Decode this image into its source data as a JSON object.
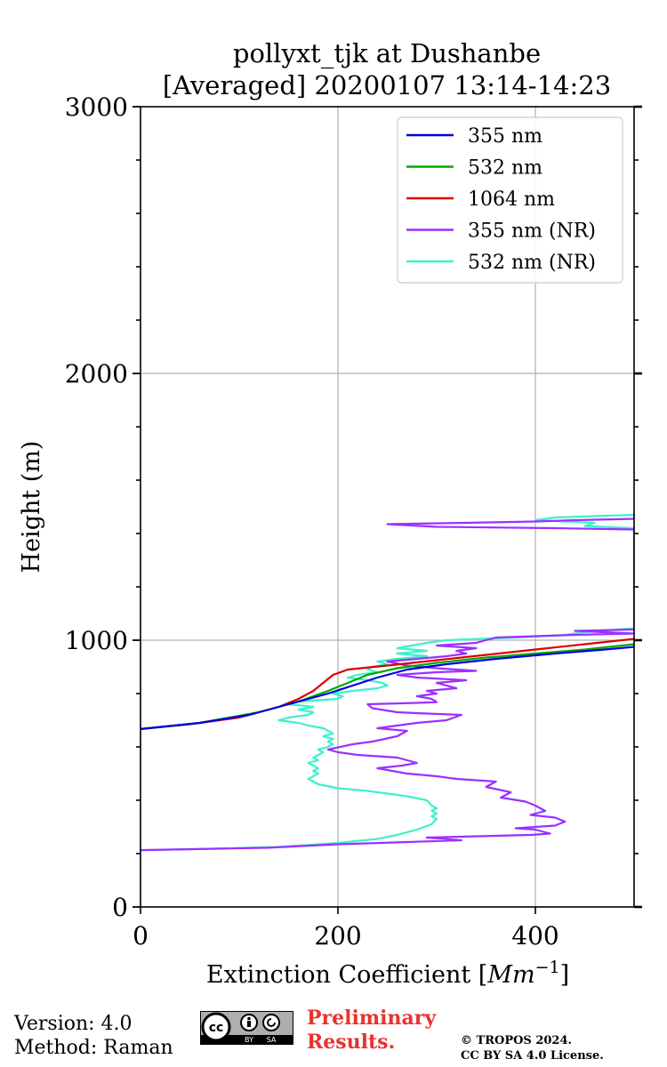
{
  "chart_data": {
    "type": "line",
    "title_line1": "pollyxt_tjk at Dushanbe",
    "title_line2": "[Averaged] 20200107 13:14-14:23",
    "xlabel": "Extinction Coefficient [",
    "xlabel_unit": "Mm",
    "xlabel_exp": "−1",
    "xlabel_end": "]",
    "ylabel": "Height (m)",
    "xlim": [
      0,
      500
    ],
    "ylim": [
      0,
      3000
    ],
    "xticks": [
      0,
      200,
      400
    ],
    "xtick_labels": [
      "0",
      "200",
      "400"
    ],
    "yticks": [
      0,
      1000,
      2000,
      3000
    ],
    "ytick_labels": [
      "0",
      "1000",
      "2000",
      "3000"
    ],
    "yminor_step": 200,
    "grid": true,
    "legend_position": "top-right",
    "series": [
      {
        "name": "355 nm",
        "color": "#0000e0",
        "points": [
          [
            0,
            667
          ],
          [
            60,
            690
          ],
          [
            110,
            720
          ],
          [
            160,
            770
          ],
          [
            190,
            800
          ],
          [
            215,
            830
          ],
          [
            240,
            860
          ],
          [
            270,
            890
          ],
          [
            310,
            910
          ],
          [
            360,
            930
          ],
          [
            420,
            950
          ],
          [
            470,
            965
          ],
          [
            500,
            975
          ]
        ]
      },
      {
        "name": "532 nm",
        "color": "#00aa00",
        "points": [
          [
            0,
            667
          ],
          [
            60,
            690
          ],
          [
            120,
            730
          ],
          [
            160,
            770
          ],
          [
            190,
            810
          ],
          [
            210,
            840
          ],
          [
            230,
            870
          ],
          [
            260,
            895
          ],
          [
            300,
            915
          ],
          [
            350,
            935
          ],
          [
            400,
            950
          ],
          [
            450,
            965
          ],
          [
            500,
            985
          ]
        ]
      },
      {
        "name": "1064 nm",
        "color": "#dd0000",
        "points": [
          [
            0,
            667
          ],
          [
            50,
            685
          ],
          [
            100,
            710
          ],
          [
            140,
            750
          ],
          [
            160,
            780
          ],
          [
            175,
            810
          ],
          [
            185,
            840
          ],
          [
            195,
            870
          ],
          [
            210,
            890
          ],
          [
            250,
            905
          ],
          [
            300,
            925
          ],
          [
            350,
            945
          ],
          [
            400,
            965
          ],
          [
            450,
            985
          ],
          [
            500,
            1005
          ]
        ]
      },
      {
        "name": "355 nm (NR)",
        "color": "#9b30ff",
        "points": [
          [
            0,
            213
          ],
          [
            130,
            222
          ],
          [
            200,
            235
          ],
          [
            260,
            242
          ],
          [
            325,
            250
          ],
          [
            290,
            260
          ],
          [
            395,
            270
          ],
          [
            415,
            275
          ],
          [
            400,
            290
          ],
          [
            380,
            295
          ],
          [
            420,
            305
          ],
          [
            430,
            320
          ],
          [
            420,
            335
          ],
          [
            395,
            345
          ],
          [
            410,
            360
          ],
          [
            400,
            380
          ],
          [
            390,
            395
          ],
          [
            365,
            410
          ],
          [
            375,
            430
          ],
          [
            350,
            450
          ],
          [
            360,
            470
          ],
          [
            320,
            480
          ],
          [
            300,
            490
          ],
          [
            270,
            500
          ],
          [
            255,
            510
          ],
          [
            240,
            520
          ],
          [
            265,
            530
          ],
          [
            280,
            540
          ],
          [
            270,
            550
          ],
          [
            260,
            560
          ],
          [
            220,
            570
          ],
          [
            200,
            580
          ],
          [
            190,
            590
          ],
          [
            215,
            610
          ],
          [
            235,
            620
          ],
          [
            260,
            640
          ],
          [
            270,
            660
          ],
          [
            240,
            670
          ],
          [
            260,
            680
          ],
          [
            280,
            690
          ],
          [
            310,
            700
          ],
          [
            325,
            720
          ],
          [
            290,
            725
          ],
          [
            260,
            730
          ],
          [
            235,
            745
          ],
          [
            230,
            760
          ],
          [
            280,
            765
          ],
          [
            300,
            768
          ],
          [
            295,
            780
          ],
          [
            280,
            790
          ],
          [
            300,
            800
          ],
          [
            290,
            810
          ],
          [
            320,
            820
          ],
          [
            300,
            840
          ],
          [
            330,
            850
          ],
          [
            280,
            860
          ],
          [
            260,
            870
          ],
          [
            300,
            880
          ],
          [
            340,
            885
          ],
          [
            300,
            895
          ],
          [
            270,
            905
          ],
          [
            250,
            920
          ],
          [
            280,
            930
          ],
          [
            310,
            940
          ],
          [
            330,
            950
          ],
          [
            320,
            960
          ],
          [
            340,
            970
          ],
          [
            300,
            980
          ],
          [
            340,
            990
          ],
          [
            360,
            1010
          ],
          [
            400,
            1015
          ],
          [
            440,
            1020
          ],
          [
            500,
            1025
          ],
          [
            440,
            1035
          ],
          [
            500,
            1040
          ],
          [
            500,
            1415
          ],
          [
            420,
            1420
          ],
          [
            300,
            1425
          ],
          [
            250,
            1435
          ],
          [
            330,
            1440
          ],
          [
            400,
            1445
          ],
          [
            440,
            1450
          ],
          [
            500,
            1455
          ],
          [
            500,
            1475
          ]
        ]
      },
      {
        "name": "532 nm (NR)",
        "color": "#3ef0cc",
        "points": [
          [
            0,
            213
          ],
          [
            60,
            217
          ],
          [
            140,
            225
          ],
          [
            200,
            240
          ],
          [
            240,
            255
          ],
          [
            260,
            270
          ],
          [
            280,
            290
          ],
          [
            295,
            310
          ],
          [
            300,
            330
          ],
          [
            295,
            340
          ],
          [
            300,
            350
          ],
          [
            295,
            360
          ],
          [
            300,
            370
          ],
          [
            295,
            380
          ],
          [
            290,
            400
          ],
          [
            270,
            415
          ],
          [
            250,
            425
          ],
          [
            230,
            435
          ],
          [
            200,
            445
          ],
          [
            180,
            460
          ],
          [
            175,
            470
          ],
          [
            170,
            480
          ],
          [
            175,
            490
          ],
          [
            180,
            500
          ],
          [
            175,
            510
          ],
          [
            180,
            520
          ],
          [
            175,
            530
          ],
          [
            170,
            540
          ],
          [
            180,
            550
          ],
          [
            175,
            560
          ],
          [
            180,
            570
          ],
          [
            185,
            580
          ],
          [
            180,
            590
          ],
          [
            190,
            600
          ],
          [
            195,
            610
          ],
          [
            190,
            620
          ],
          [
            195,
            630
          ],
          [
            185,
            640
          ],
          [
            195,
            650
          ],
          [
            190,
            660
          ],
          [
            185,
            670
          ],
          [
            170,
            680
          ],
          [
            160,
            690
          ],
          [
            140,
            700
          ],
          [
            150,
            710
          ],
          [
            170,
            720
          ],
          [
            175,
            730
          ],
          [
            160,
            740
          ],
          [
            175,
            750
          ],
          [
            150,
            760
          ],
          [
            160,
            770
          ],
          [
            200,
            780
          ],
          [
            205,
            790
          ],
          [
            195,
            800
          ],
          [
            215,
            810
          ],
          [
            240,
            820
          ],
          [
            250,
            830
          ],
          [
            245,
            840
          ],
          [
            230,
            850
          ],
          [
            210,
            860
          ],
          [
            220,
            870
          ],
          [
            240,
            880
          ],
          [
            230,
            890
          ],
          [
            235,
            900
          ],
          [
            250,
            910
          ],
          [
            240,
            920
          ],
          [
            260,
            930
          ],
          [
            290,
            940
          ],
          [
            260,
            950
          ],
          [
            290,
            960
          ],
          [
            260,
            970
          ],
          [
            275,
            980
          ],
          [
            290,
            990
          ],
          [
            300,
            995
          ],
          [
            310,
            1000
          ],
          [
            380,
            1010
          ],
          [
            430,
            1020
          ],
          [
            450,
            1030
          ],
          [
            500,
            1045
          ],
          [
            500,
            1420
          ],
          [
            450,
            1428
          ],
          [
            460,
            1440
          ],
          [
            400,
            1450
          ],
          [
            420,
            1460
          ],
          [
            500,
            1470
          ],
          [
            500,
            1480
          ]
        ]
      }
    ]
  },
  "footer": {
    "version": "Version: 4.0",
    "method": "Method: Raman",
    "preliminary_line1": "Preliminary",
    "preliminary_line2": "Results.",
    "copyright_line1": "© TROPOS 2024.",
    "copyright_line2": "CC BY SA 4.0 License."
  },
  "license_badge": {
    "icon": "cc-by-sa-icon",
    "by_label": "BY",
    "sa_label": "SA"
  }
}
